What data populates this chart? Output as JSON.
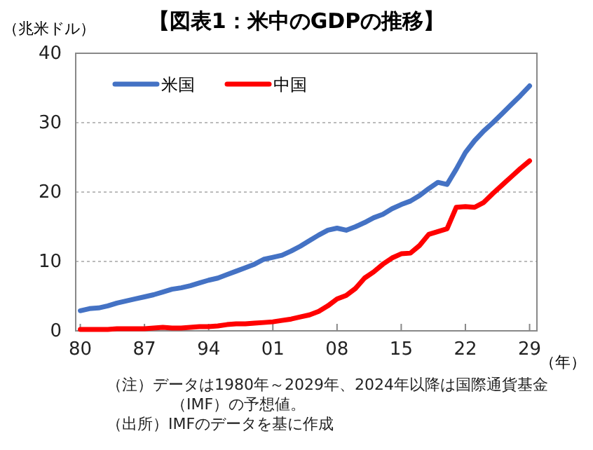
{
  "chart_data": {
    "type": "line",
    "title": "【図表1：米中のGDPの推移】",
    "ylabel": "（兆米ドル）",
    "xlabel": "（年）",
    "x": [
      1980,
      1981,
      1982,
      1983,
      1984,
      1985,
      1986,
      1987,
      1988,
      1989,
      1990,
      1991,
      1992,
      1993,
      1994,
      1995,
      1996,
      1997,
      1998,
      1999,
      2000,
      2001,
      2002,
      2003,
      2004,
      2005,
      2006,
      2007,
      2008,
      2009,
      2010,
      2011,
      2012,
      2013,
      2014,
      2015,
      2016,
      2017,
      2018,
      2019,
      2020,
      2021,
      2022,
      2023,
      2024,
      2025,
      2026,
      2027,
      2028,
      2029
    ],
    "series": [
      {
        "name": "米国",
        "color": "#4472c4",
        "values": [
          2.9,
          3.2,
          3.3,
          3.6,
          4.0,
          4.3,
          4.6,
          4.9,
          5.2,
          5.6,
          6.0,
          6.2,
          6.5,
          6.9,
          7.3,
          7.6,
          8.1,
          8.6,
          9.1,
          9.6,
          10.3,
          10.6,
          10.9,
          11.5,
          12.2,
          13.0,
          13.8,
          14.5,
          14.8,
          14.5,
          15.0,
          15.6,
          16.3,
          16.8,
          17.6,
          18.2,
          18.7,
          19.5,
          20.5,
          21.4,
          21.1,
          23.3,
          25.7,
          27.4,
          28.8,
          30.0,
          31.3,
          32.6,
          33.9,
          35.3
        ]
      },
      {
        "name": "中国",
        "color": "#ff0000",
        "values": [
          0.2,
          0.2,
          0.2,
          0.2,
          0.3,
          0.3,
          0.3,
          0.3,
          0.4,
          0.5,
          0.4,
          0.4,
          0.5,
          0.6,
          0.6,
          0.7,
          0.9,
          1.0,
          1.0,
          1.1,
          1.2,
          1.3,
          1.5,
          1.7,
          2.0,
          2.3,
          2.8,
          3.6,
          4.6,
          5.1,
          6.1,
          7.6,
          8.5,
          9.6,
          10.5,
          11.1,
          11.2,
          12.3,
          13.9,
          14.3,
          14.7,
          17.8,
          17.9,
          17.8,
          18.5,
          19.8,
          21.0,
          22.2,
          23.4,
          24.5
        ]
      }
    ],
    "xlim": [
      1979.5,
      2029.8
    ],
    "xticks": [
      {
        "value": 1980,
        "label": "80"
      },
      {
        "value": 1987,
        "label": "87"
      },
      {
        "value": 1994,
        "label": "94"
      },
      {
        "value": 2001,
        "label": "01"
      },
      {
        "value": 2008,
        "label": "08"
      },
      {
        "value": 2015,
        "label": "15"
      },
      {
        "value": 2022,
        "label": "22"
      },
      {
        "value": 2029,
        "label": "29"
      }
    ],
    "ylim": [
      0,
      40
    ],
    "yticks": [
      0,
      10,
      20,
      30,
      40
    ],
    "grid": "y",
    "legend": "top left",
    "marker": "none",
    "line_style": "solid",
    "annotations": [
      "（注）データは1980年～2029年、2024年以降は国際通貨基金（IMF）の予想値。",
      "（出所）IMFのデータを基に作成"
    ]
  }
}
